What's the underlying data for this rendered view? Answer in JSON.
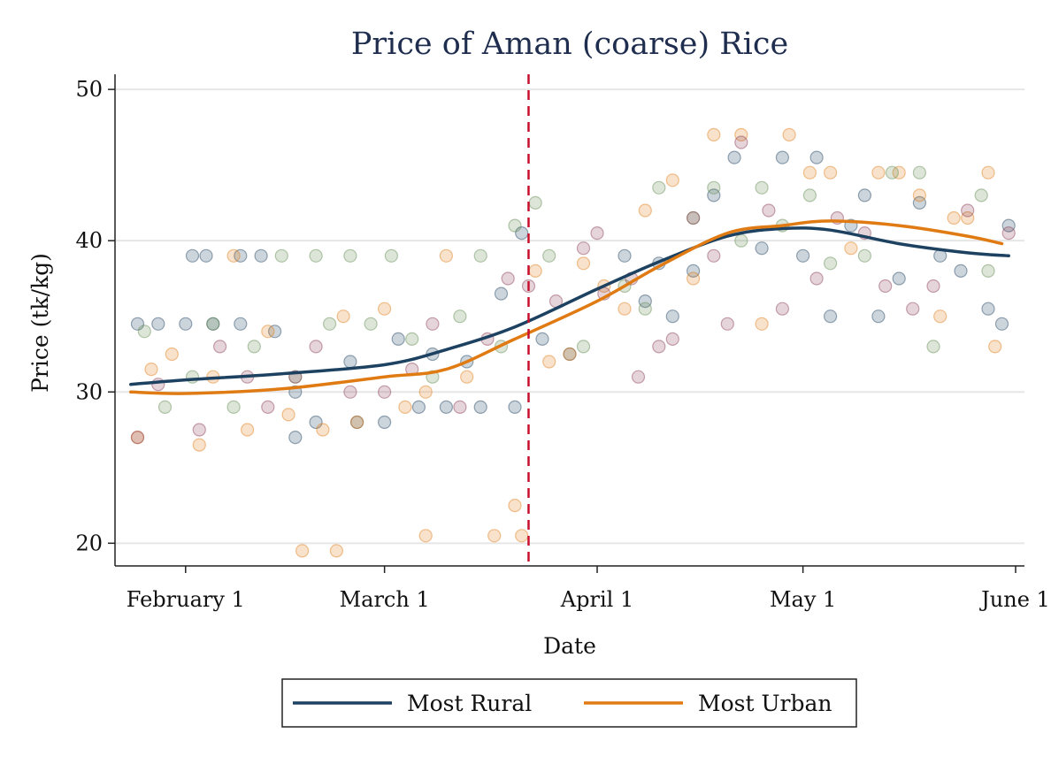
{
  "chart_data": {
    "type": "scatter",
    "title": "Price of Aman (coarse) Rice",
    "xlabel": "Date",
    "ylabel": "Price (tk/kg)",
    "x_axis_type": "date",
    "xlim": [
      "2020-01-23",
      "2020-06-01"
    ],
    "ylim": [
      18.5,
      51
    ],
    "x_ticks": [
      {
        "date": "2020-02-01",
        "label": "February 1"
      },
      {
        "date": "2020-03-01",
        "label": "March 1"
      },
      {
        "date": "2020-04-01",
        "label": "April 1"
      },
      {
        "date": "2020-05-01",
        "label": "May 1"
      },
      {
        "date": "2020-06-01",
        "label": "June 1"
      }
    ],
    "y_ticks": [
      20,
      30,
      40,
      50
    ],
    "grid": true,
    "reference_line": {
      "date": "2020-03-22",
      "style": "dashed",
      "color": "#c8102e"
    },
    "legend": {
      "placement": "bottom"
    },
    "series": [
      {
        "name": "Most Rural",
        "kind": "smoothed-line",
        "color": "#1d4160",
        "points": [
          [
            "2020-01-24",
            30.5
          ],
          [
            "2020-02-01",
            30.8
          ],
          [
            "2020-02-15",
            31.2
          ],
          [
            "2020-03-01",
            31.8
          ],
          [
            "2020-03-10",
            32.8
          ],
          [
            "2020-03-20",
            34.3
          ],
          [
            "2020-04-01",
            36.8
          ],
          [
            "2020-04-10",
            38.6
          ],
          [
            "2020-04-20",
            40.3
          ],
          [
            "2020-04-28",
            40.8
          ],
          [
            "2020-05-05",
            40.7
          ],
          [
            "2020-05-15",
            39.8
          ],
          [
            "2020-05-25",
            39.2
          ],
          [
            "2020-05-31",
            39.0
          ]
        ]
      },
      {
        "name": "Most Urban",
        "kind": "smoothed-line",
        "color": "#e07b14",
        "points": [
          [
            "2020-01-24",
            30.0
          ],
          [
            "2020-02-01",
            29.9
          ],
          [
            "2020-02-15",
            30.2
          ],
          [
            "2020-03-01",
            31.0
          ],
          [
            "2020-03-10",
            31.5
          ],
          [
            "2020-03-20",
            33.5
          ],
          [
            "2020-04-01",
            36.0
          ],
          [
            "2020-04-10",
            38.3
          ],
          [
            "2020-04-20",
            40.5
          ],
          [
            "2020-04-28",
            41.0
          ],
          [
            "2020-05-05",
            41.3
          ],
          [
            "2020-05-15",
            41.0
          ],
          [
            "2020-05-25",
            40.3
          ],
          [
            "2020-05-30",
            39.8
          ]
        ]
      }
    ],
    "scatter_groups": [
      {
        "color": "#1d4160",
        "points": [
          [
            "2020-01-25",
            34.5
          ],
          [
            "2020-01-28",
            34.5
          ],
          [
            "2020-02-01",
            34.5
          ],
          [
            "2020-02-02",
            39
          ],
          [
            "2020-02-04",
            39
          ],
          [
            "2020-02-05",
            34.5
          ],
          [
            "2020-02-09",
            34.5
          ],
          [
            "2020-02-09",
            39
          ],
          [
            "2020-02-12",
            39
          ],
          [
            "2020-02-14",
            34
          ],
          [
            "2020-02-17",
            30
          ],
          [
            "2020-02-17",
            27
          ],
          [
            "2020-02-20",
            28
          ],
          [
            "2020-02-25",
            32
          ],
          [
            "2020-02-26",
            28
          ],
          [
            "2020-03-01",
            28
          ],
          [
            "2020-03-03",
            33.5
          ],
          [
            "2020-03-06",
            29
          ],
          [
            "2020-03-08",
            32.5
          ],
          [
            "2020-03-10",
            29
          ],
          [
            "2020-03-13",
            32
          ],
          [
            "2020-03-15",
            29
          ],
          [
            "2020-03-18",
            36.5
          ],
          [
            "2020-03-20",
            29
          ],
          [
            "2020-03-21",
            40.5
          ],
          [
            "2020-03-24",
            33.5
          ],
          [
            "2020-03-28",
            32.5
          ],
          [
            "2020-04-05",
            39
          ],
          [
            "2020-04-08",
            36
          ],
          [
            "2020-04-10",
            38.5
          ],
          [
            "2020-04-12",
            35
          ],
          [
            "2020-04-15",
            38
          ],
          [
            "2020-04-18",
            43
          ],
          [
            "2020-04-21",
            45.5
          ],
          [
            "2020-04-25",
            39.5
          ],
          [
            "2020-04-28",
            45.5
          ],
          [
            "2020-05-01",
            39
          ],
          [
            "2020-05-03",
            45.5
          ],
          [
            "2020-05-05",
            35
          ],
          [
            "2020-05-08",
            41
          ],
          [
            "2020-05-10",
            43
          ],
          [
            "2020-05-12",
            35
          ],
          [
            "2020-05-15",
            37.5
          ],
          [
            "2020-05-18",
            42.5
          ],
          [
            "2020-05-21",
            39
          ],
          [
            "2020-05-24",
            38
          ],
          [
            "2020-05-28",
            35.5
          ],
          [
            "2020-05-30",
            34.5
          ],
          [
            "2020-05-31",
            41
          ]
        ]
      },
      {
        "color": "#e07b14",
        "points": [
          [
            "2020-01-25",
            27
          ],
          [
            "2020-01-27",
            31.5
          ],
          [
            "2020-01-30",
            32.5
          ],
          [
            "2020-02-03",
            26.5
          ],
          [
            "2020-02-05",
            31
          ],
          [
            "2020-02-08",
            39
          ],
          [
            "2020-02-10",
            27.5
          ],
          [
            "2020-02-13",
            34
          ],
          [
            "2020-02-16",
            28.5
          ],
          [
            "2020-02-18",
            19.5
          ],
          [
            "2020-02-21",
            27.5
          ],
          [
            "2020-02-23",
            19.5
          ],
          [
            "2020-02-24",
            35
          ],
          [
            "2020-02-26",
            28
          ],
          [
            "2020-03-01",
            35.5
          ],
          [
            "2020-03-04",
            29
          ],
          [
            "2020-03-07",
            30
          ],
          [
            "2020-03-07",
            20.5
          ],
          [
            "2020-03-10",
            39
          ],
          [
            "2020-03-13",
            31
          ],
          [
            "2020-03-17",
            20.5
          ],
          [
            "2020-03-20",
            22.5
          ],
          [
            "2020-03-21",
            20.5
          ],
          [
            "2020-03-23",
            38
          ],
          [
            "2020-03-25",
            32
          ],
          [
            "2020-03-28",
            32.5
          ],
          [
            "2020-03-30",
            38.5
          ],
          [
            "2020-04-02",
            37
          ],
          [
            "2020-04-05",
            35.5
          ],
          [
            "2020-04-08",
            42
          ],
          [
            "2020-04-12",
            44
          ],
          [
            "2020-04-15",
            37.5
          ],
          [
            "2020-04-18",
            47
          ],
          [
            "2020-04-22",
            47
          ],
          [
            "2020-04-25",
            34.5
          ],
          [
            "2020-04-29",
            47
          ],
          [
            "2020-05-02",
            44.5
          ],
          [
            "2020-05-05",
            44.5
          ],
          [
            "2020-05-08",
            39.5
          ],
          [
            "2020-05-12",
            44.5
          ],
          [
            "2020-05-15",
            44.5
          ],
          [
            "2020-05-18",
            43
          ],
          [
            "2020-05-21",
            35
          ],
          [
            "2020-05-23",
            41.5
          ],
          [
            "2020-05-25",
            41.5
          ],
          [
            "2020-05-28",
            44.5
          ],
          [
            "2020-05-29",
            33
          ]
        ]
      },
      {
        "color": "#5f8a4d",
        "points": [
          [
            "2020-01-26",
            34
          ],
          [
            "2020-01-29",
            29
          ],
          [
            "2020-02-02",
            31
          ],
          [
            "2020-02-05",
            34.5
          ],
          [
            "2020-02-08",
            29
          ],
          [
            "2020-02-11",
            33
          ],
          [
            "2020-02-15",
            39
          ],
          [
            "2020-02-17",
            31
          ],
          [
            "2020-02-20",
            39
          ],
          [
            "2020-02-22",
            34.5
          ],
          [
            "2020-02-25",
            39
          ],
          [
            "2020-02-28",
            34.5
          ],
          [
            "2020-03-02",
            39
          ],
          [
            "2020-03-05",
            33.5
          ],
          [
            "2020-03-08",
            31
          ],
          [
            "2020-03-12",
            35
          ],
          [
            "2020-03-15",
            39
          ],
          [
            "2020-03-18",
            33
          ],
          [
            "2020-03-20",
            41
          ],
          [
            "2020-03-23",
            42.5
          ],
          [
            "2020-03-25",
            39
          ],
          [
            "2020-03-30",
            33
          ],
          [
            "2020-04-05",
            37
          ],
          [
            "2020-04-08",
            35.5
          ],
          [
            "2020-04-10",
            43.5
          ],
          [
            "2020-04-15",
            41.5
          ],
          [
            "2020-04-18",
            43.5
          ],
          [
            "2020-04-22",
            40
          ],
          [
            "2020-04-25",
            43.5
          ],
          [
            "2020-04-28",
            41
          ],
          [
            "2020-05-02",
            43
          ],
          [
            "2020-05-05",
            38.5
          ],
          [
            "2020-05-10",
            39
          ],
          [
            "2020-05-14",
            44.5
          ],
          [
            "2020-05-18",
            44.5
          ],
          [
            "2020-05-20",
            33
          ],
          [
            "2020-05-27",
            43
          ],
          [
            "2020-05-28",
            38
          ]
        ]
      },
      {
        "color": "#8a3a52",
        "points": [
          [
            "2020-01-25",
            27
          ],
          [
            "2020-01-28",
            30.5
          ],
          [
            "2020-02-03",
            27.5
          ],
          [
            "2020-02-06",
            33
          ],
          [
            "2020-02-10",
            31
          ],
          [
            "2020-02-13",
            29
          ],
          [
            "2020-02-17",
            31
          ],
          [
            "2020-02-20",
            33
          ],
          [
            "2020-02-25",
            30
          ],
          [
            "2020-03-01",
            30
          ],
          [
            "2020-03-05",
            31.5
          ],
          [
            "2020-03-08",
            34.5
          ],
          [
            "2020-03-12",
            29
          ],
          [
            "2020-03-16",
            33.5
          ],
          [
            "2020-03-19",
            37.5
          ],
          [
            "2020-03-22",
            37
          ],
          [
            "2020-03-26",
            36
          ],
          [
            "2020-03-30",
            39.5
          ],
          [
            "2020-04-01",
            40.5
          ],
          [
            "2020-04-02",
            36.5
          ],
          [
            "2020-04-06",
            37.5
          ],
          [
            "2020-04-07",
            31
          ],
          [
            "2020-04-10",
            33
          ],
          [
            "2020-04-12",
            33.5
          ],
          [
            "2020-04-15",
            41.5
          ],
          [
            "2020-04-18",
            39
          ],
          [
            "2020-04-20",
            34.5
          ],
          [
            "2020-04-22",
            46.5
          ],
          [
            "2020-04-26",
            42
          ],
          [
            "2020-04-28",
            35.5
          ],
          [
            "2020-05-03",
            37.5
          ],
          [
            "2020-05-06",
            41.5
          ],
          [
            "2020-05-10",
            40.5
          ],
          [
            "2020-05-13",
            37
          ],
          [
            "2020-05-17",
            35.5
          ],
          [
            "2020-05-20",
            37
          ],
          [
            "2020-05-25",
            42
          ],
          [
            "2020-05-31",
            40.5
          ]
        ]
      }
    ]
  }
}
